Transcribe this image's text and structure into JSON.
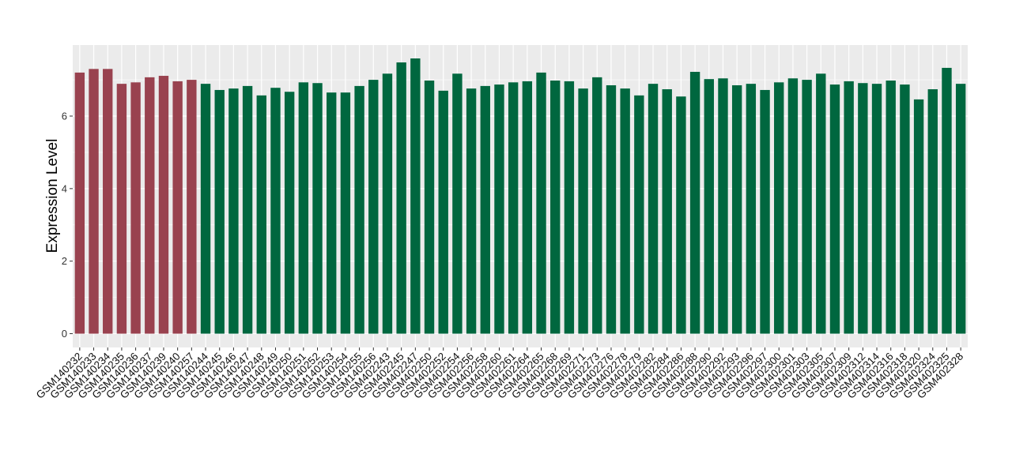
{
  "chart_data": {
    "type": "bar",
    "ylabel": "Expression Level",
    "xlabel": "",
    "ylim": [
      -0.38,
      7.96
    ],
    "yticks": [
      0,
      2,
      4,
      6
    ],
    "grid": true,
    "legend": "none",
    "colors": {
      "group1": "#99424F",
      "group2": "#00673F",
      "panel": "#EBEBEB",
      "grid": "#FFFFFF"
    },
    "categories": [
      "GSM140232",
      "GSM140233",
      "GSM140234",
      "GSM140235",
      "GSM140236",
      "GSM140237",
      "GSM140239",
      "GSM140240",
      "GSM140257",
      "GSM140244",
      "GSM140245",
      "GSM140246",
      "GSM140247",
      "GSM140248",
      "GSM140249",
      "GSM140250",
      "GSM140251",
      "GSM140252",
      "GSM140253",
      "GSM140254",
      "GSM140255",
      "GSM140256",
      "GSM402243",
      "GSM402245",
      "GSM402247",
      "GSM402250",
      "GSM402252",
      "GSM402254",
      "GSM402256",
      "GSM402258",
      "GSM402260",
      "GSM402261",
      "GSM402264",
      "GSM402265",
      "GSM402268",
      "GSM402269",
      "GSM402271",
      "GSM402273",
      "GSM402276",
      "GSM402278",
      "GSM402279",
      "GSM402282",
      "GSM402284",
      "GSM402286",
      "GSM402288",
      "GSM402290",
      "GSM402292",
      "GSM402293",
      "GSM402296",
      "GSM402297",
      "GSM402300",
      "GSM402301",
      "GSM402303",
      "GSM402305",
      "GSM402307",
      "GSM402309",
      "GSM402312",
      "GSM402314",
      "GSM402316",
      "GSM402318",
      "GSM402320",
      "GSM402324",
      "GSM402325",
      "GSM402328"
    ],
    "values": [
      7.2,
      7.3,
      7.3,
      6.89,
      6.93,
      7.07,
      7.11,
      6.96,
      7.0,
      6.89,
      6.72,
      6.76,
      6.83,
      6.57,
      6.78,
      6.67,
      6.93,
      6.91,
      6.65,
      6.65,
      6.83,
      7.0,
      7.17,
      7.48,
      7.59,
      6.98,
      6.7,
      7.17,
      6.76,
      6.83,
      6.87,
      6.93,
      6.96,
      7.2,
      6.98,
      6.96,
      6.76,
      7.07,
      6.85,
      6.76,
      6.57,
      6.89,
      6.74,
      6.54,
      7.22,
      7.02,
      7.04,
      6.85,
      6.89,
      6.72,
      6.93,
      7.04,
      7.0,
      7.17,
      6.87,
      6.96,
      6.91,
      6.89,
      6.98,
      6.87,
      6.46,
      6.74,
      7.33,
      6.89
    ],
    "groups": [
      1,
      1,
      1,
      1,
      1,
      1,
      1,
      1,
      1,
      2,
      2,
      2,
      2,
      2,
      2,
      2,
      2,
      2,
      2,
      2,
      2,
      2,
      2,
      2,
      2,
      2,
      2,
      2,
      2,
      2,
      2,
      2,
      2,
      2,
      2,
      2,
      2,
      2,
      2,
      2,
      2,
      2,
      2,
      2,
      2,
      2,
      2,
      2,
      2,
      2,
      2,
      2,
      2,
      2,
      2,
      2,
      2,
      2,
      2,
      2,
      2,
      2,
      2,
      2
    ]
  }
}
